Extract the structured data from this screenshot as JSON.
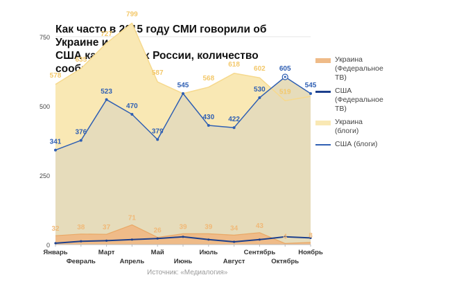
{
  "chart_data": {
    "type": "area",
    "title": "Как часто в 2015 году СМИ говорили об Украине и США как о врагах России, количество сообщений",
    "title_lines": [
      "Как часто в 2015 году СМИ говорили об Украине и",
      "США как о врагах России, количество сообщений"
    ],
    "categories": [
      "Январь",
      "Февраль",
      "Март",
      "Апрель",
      "Май",
      "Июнь",
      "Июль",
      "Август",
      "Сентябрь",
      "Октябрь",
      "Ноябрь"
    ],
    "ylim": [
      0,
      800
    ],
    "yticks": [
      "0",
      "250",
      "500",
      "750"
    ],
    "yticks_values": [
      0,
      250,
      500,
      750
    ],
    "series": [
      {
        "name": "Украина (блоги)",
        "legend_label": "Украина (блоги)",
        "type": "area",
        "color": "#f6d98e",
        "fill": "#f9e8b4",
        "values": [
          578,
          635,
          727,
          799,
          587,
          545,
          568,
          618,
          602,
          519,
          535
        ],
        "labels": [
          "578",
          "635",
          "727",
          "799",
          "587",
          "",
          "568",
          "618",
          "602",
          "519",
          ""
        ]
      },
      {
        "name": "США (блоги)",
        "legend_label": "США (блоги)",
        "type": "area-line",
        "color": "#2f5fb3",
        "fill": "#e6dcbb",
        "values": [
          341,
          376,
          523,
          470,
          379,
          545,
          430,
          422,
          530,
          605,
          545
        ],
        "labels": [
          "341",
          "376",
          "523",
          "470",
          "379",
          "545",
          "430",
          "422",
          "530",
          "605",
          "545"
        ]
      },
      {
        "name": "Украина (Федеральное ТВ)",
        "legend_label": "Украина (Федеральное ТВ)",
        "type": "area",
        "color": "#e9a866",
        "fill": "#efbb88",
        "values": [
          32,
          38,
          37,
          71,
          26,
          39,
          39,
          34,
          43,
          4,
          8
        ],
        "labels": [
          "32",
          "38",
          "37",
          "71",
          "26",
          "39",
          "39",
          "34",
          "43",
          "4",
          "8"
        ]
      },
      {
        "name": "США (Федеральное ТВ)",
        "legend_label": "США (Федеральное ТВ)",
        "type": "line",
        "color": "#1c3f8c",
        "fill": "#1c3f8c",
        "values": [
          5,
          12,
          14,
          18,
          22,
          28,
          18,
          10,
          18,
          28,
          24
        ],
        "labels": []
      }
    ],
    "legend_order": [
      2,
      3,
      0,
      1
    ],
    "source": "Источник: «Медиалогия»"
  }
}
